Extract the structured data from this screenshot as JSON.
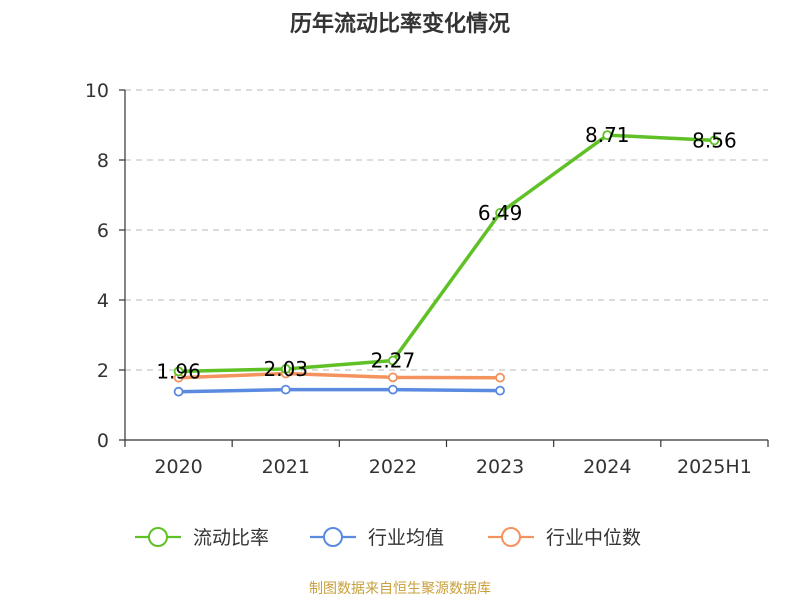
{
  "title": "历年流动比率变化情况",
  "source_note": "制图数据来自恒生聚源数据库",
  "chart_data": {
    "type": "line",
    "categories": [
      "2020",
      "2021",
      "2022",
      "2023",
      "2024",
      "2025H1"
    ],
    "ylim": [
      0,
      10
    ],
    "yticks": [
      0,
      2,
      4,
      6,
      8,
      10
    ],
    "grid": true,
    "legend_position": "bottom",
    "series": [
      {
        "name": "流动比率",
        "color": "#5fc126",
        "values": [
          1.96,
          2.03,
          2.27,
          6.49,
          8.71,
          8.56
        ],
        "labels": [
          "1.96",
          "2.03",
          "2.27",
          "6.49",
          "8.71",
          "8.56"
        ]
      },
      {
        "name": "行业均值",
        "color": "#5b8be0",
        "values": [
          1.38,
          1.44,
          1.44,
          1.41,
          null,
          null
        ]
      },
      {
        "name": "行业中位数",
        "color": "#f4935d",
        "values": [
          1.78,
          1.9,
          1.79,
          1.78,
          null,
          null
        ]
      }
    ]
  }
}
